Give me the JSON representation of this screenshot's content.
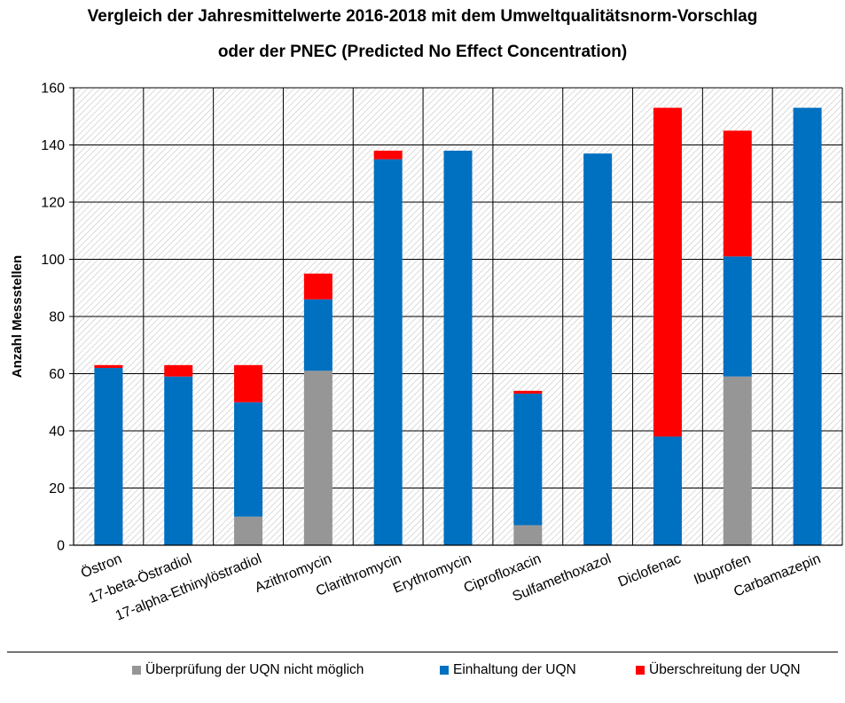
{
  "chart_data": {
    "type": "bar",
    "stacked": true,
    "title_line1": "Vergleich der Jahresmittelwerte 2016-2018 mit dem Umweltqualitätsnorm-Vorschlag",
    "title_line2": "oder der PNEC (Predicted No Effect Concentration)",
    "xlabel": "",
    "ylabel": "Anzahl Messstellen",
    "ylim": [
      0,
      160
    ],
    "yticks": [
      0,
      20,
      40,
      60,
      80,
      100,
      120,
      140,
      160
    ],
    "grid": true,
    "legend_position": "bottom",
    "categories": [
      "Östron",
      "17-beta-Östradiol",
      "17-alpha-Ethinylöstradiol",
      "Azithromycin",
      "Clarithromycin",
      "Erythromycin",
      "Ciprofloxacin",
      "Sulfamethoxazol",
      "Diclofenac",
      "Ibuprofen",
      "Carbamazepin"
    ],
    "series": [
      {
        "name": "Überprüfung der UQN nicht möglich",
        "color": "#969696",
        "values": [
          0,
          0,
          10,
          61,
          0,
          0,
          7,
          0,
          0,
          59,
          0
        ]
      },
      {
        "name": "Einhaltung der UQN",
        "color": "#0070C0",
        "values": [
          62,
          59,
          40,
          25,
          135,
          138,
          46,
          137,
          38,
          42,
          153
        ]
      },
      {
        "name": "Überschreitung der UQN",
        "color": "#FF0000",
        "values": [
          1,
          4,
          13,
          9,
          3,
          0,
          1,
          0,
          115,
          44,
          0
        ]
      }
    ]
  }
}
